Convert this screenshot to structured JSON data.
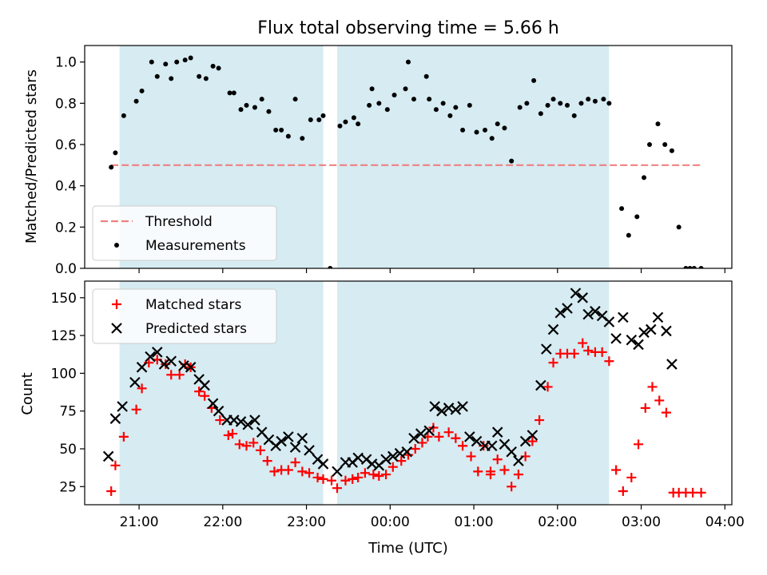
{
  "chart_data": [
    {
      "type": "scatter",
      "title": "Flux total observing time = 5.66 h",
      "ylabel": "Matched/Predicted stars",
      "xlim": [
        "20:21",
        "04:05"
      ],
      "ylim": [
        0,
        1.08
      ],
      "yticks": [
        "0.0",
        "0.2",
        "0.4",
        "0.6",
        "0.8",
        "1.0"
      ],
      "legend_placement": "lower-left",
      "observing_windows": [
        [
          "20:46",
          "23:12"
        ],
        [
          "23:22",
          "02:37"
        ]
      ],
      "series": [
        {
          "name": "Threshold",
          "style": "dashed-line",
          "color": "#f08080",
          "points": [
            [
              "20:40",
              0.5
            ],
            [
              "03:43",
              0.5
            ]
          ]
        },
        {
          "name": "Measurements",
          "style": "dot",
          "color": "#000000",
          "points": [
            [
              "20:40",
              0.49
            ],
            [
              "20:43",
              0.56
            ],
            [
              "20:49",
              0.74
            ],
            [
              "20:58",
              0.81
            ],
            [
              "21:02",
              0.86
            ],
            [
              "21:09",
              1.0
            ],
            [
              "21:13",
              0.93
            ],
            [
              "21:19",
              0.99
            ],
            [
              "21:23",
              0.92
            ],
            [
              "21:27",
              1.0
            ],
            [
              "21:33",
              1.01
            ],
            [
              "21:37",
              1.02
            ],
            [
              "21:43",
              0.93
            ],
            [
              "21:48",
              0.92
            ],
            [
              "21:53",
              0.98
            ],
            [
              "21:57",
              0.97
            ],
            [
              "22:05",
              0.85
            ],
            [
              "22:08",
              0.85
            ],
            [
              "22:13",
              0.77
            ],
            [
              "22:17",
              0.79
            ],
            [
              "22:23",
              0.78
            ],
            [
              "22:28",
              0.82
            ],
            [
              "22:33",
              0.76
            ],
            [
              "22:38",
              0.67
            ],
            [
              "22:42",
              0.67
            ],
            [
              "22:47",
              0.64
            ],
            [
              "22:52",
              0.82
            ],
            [
              "22:57",
              0.63
            ],
            [
              "23:03",
              0.72
            ],
            [
              "23:09",
              0.72
            ],
            [
              "23:12",
              0.74
            ],
            [
              "23:17",
              0.0
            ],
            [
              "23:24",
              0.69
            ],
            [
              "23:28",
              0.71
            ],
            [
              "23:34",
              0.73
            ],
            [
              "23:37",
              0.7
            ],
            [
              "23:45",
              0.79
            ],
            [
              "23:47",
              0.87
            ],
            [
              "23:52",
              0.8
            ],
            [
              "23:58",
              0.77
            ],
            [
              "00:03",
              0.84
            ],
            [
              "00:11",
              0.87
            ],
            [
              "00:13",
              1.0
            ],
            [
              "00:17",
              0.82
            ],
            [
              "00:26",
              0.93
            ],
            [
              "00:28",
              0.82
            ],
            [
              "00:33",
              0.77
            ],
            [
              "00:38",
              0.8
            ],
            [
              "00:43",
              0.74
            ],
            [
              "00:47",
              0.78
            ],
            [
              "00:52",
              0.67
            ],
            [
              "00:57",
              0.79
            ],
            [
              "01:02",
              0.66
            ],
            [
              "01:08",
              0.67
            ],
            [
              "01:13",
              0.63
            ],
            [
              "01:17",
              0.7
            ],
            [
              "01:22",
              0.68
            ],
            [
              "01:27",
              0.52
            ],
            [
              "01:33",
              0.78
            ],
            [
              "01:38",
              0.8
            ],
            [
              "01:43",
              0.91
            ],
            [
              "01:48",
              0.75
            ],
            [
              "01:53",
              0.79
            ],
            [
              "01:57",
              0.82
            ],
            [
              "02:02",
              0.8
            ],
            [
              "02:07",
              0.79
            ],
            [
              "02:12",
              0.74
            ],
            [
              "02:17",
              0.8
            ],
            [
              "02:22",
              0.82
            ],
            [
              "02:27",
              0.81
            ],
            [
              "02:33",
              0.82
            ],
            [
              "02:37",
              0.8
            ],
            [
              "02:46",
              0.29
            ],
            [
              "02:51",
              0.16
            ],
            [
              "02:57",
              0.25
            ],
            [
              "03:02",
              0.44
            ],
            [
              "03:06",
              0.6
            ],
            [
              "03:12",
              0.7
            ],
            [
              "03:17",
              0.6
            ],
            [
              "03:22",
              0.57
            ],
            [
              "03:27",
              0.2
            ],
            [
              "03:32",
              0.0
            ],
            [
              "03:35",
              0.0
            ],
            [
              "03:38",
              0.0
            ],
            [
              "03:43",
              0.0
            ]
          ]
        }
      ]
    },
    {
      "type": "scatter",
      "xlabel": "Time (UTC)",
      "ylabel": "Count",
      "xlim": [
        "20:21",
        "04:05"
      ],
      "ylim": [
        13,
        161
      ],
      "xticks": [
        "21:00",
        "22:00",
        "23:00",
        "00:00",
        "01:00",
        "02:00",
        "03:00",
        "04:00"
      ],
      "yticks": [
        "25",
        "50",
        "75",
        "100",
        "125",
        "150"
      ],
      "legend_placement": "upper-left",
      "observing_windows": [
        [
          "20:46",
          "23:12"
        ],
        [
          "23:22",
          "02:37"
        ]
      ],
      "series": [
        {
          "name": "Matched stars",
          "style": "plus",
          "color": "#ff0000",
          "points": [
            [
              "20:40",
              22
            ],
            [
              "20:43",
              39
            ],
            [
              "20:49",
              58
            ],
            [
              "20:58",
              76
            ],
            [
              "21:02",
              90
            ],
            [
              "21:07",
              107
            ],
            [
              "21:13",
              109
            ],
            [
              "21:19",
              106
            ],
            [
              "21:23",
              99
            ],
            [
              "21:29",
              99
            ],
            [
              "21:33",
              106
            ],
            [
              "21:37",
              104
            ],
            [
              "21:43",
              88
            ],
            [
              "21:47",
              85
            ],
            [
              "21:52",
              77
            ],
            [
              "21:58",
              69
            ],
            [
              "22:04",
              59
            ],
            [
              "22:07",
              60
            ],
            [
              "22:12",
              53
            ],
            [
              "22:17",
              52
            ],
            [
              "22:22",
              54
            ],
            [
              "22:27",
              49
            ],
            [
              "22:32",
              42
            ],
            [
              "22:37",
              35
            ],
            [
              "22:42",
              36
            ],
            [
              "22:47",
              36
            ],
            [
              "22:52",
              41
            ],
            [
              "22:57",
              35
            ],
            [
              "23:02",
              34
            ],
            [
              "23:08",
              31
            ],
            [
              "23:12",
              30
            ],
            [
              "23:18",
              29
            ],
            [
              "23:22",
              24
            ],
            [
              "23:28",
              29
            ],
            [
              "23:33",
              30
            ],
            [
              "23:37",
              31
            ],
            [
              "23:42",
              34
            ],
            [
              "23:48",
              33
            ],
            [
              "23:52",
              32
            ],
            [
              "23:57",
              33
            ],
            [
              "00:02",
              38
            ],
            [
              "00:08",
              42
            ],
            [
              "00:13",
              46
            ],
            [
              "00:18",
              50
            ],
            [
              "00:23",
              54
            ],
            [
              "00:27",
              58
            ],
            [
              "00:31",
              64
            ],
            [
              "00:35",
              58
            ],
            [
              "00:42",
              61
            ],
            [
              "00:47",
              57
            ],
            [
              "00:52",
              52
            ],
            [
              "00:58",
              45
            ],
            [
              "01:03",
              35
            ],
            [
              "01:07",
              52
            ],
            [
              "01:12",
              33
            ],
            [
              "01:12",
              35
            ],
            [
              "01:17",
              43
            ],
            [
              "01:22",
              36
            ],
            [
              "01:27",
              25
            ],
            [
              "01:32",
              33
            ],
            [
              "01:37",
              45
            ],
            [
              "01:42",
              55
            ],
            [
              "01:47",
              69
            ],
            [
              "01:53",
              91
            ],
            [
              "01:57",
              107
            ],
            [
              "02:02",
              113
            ],
            [
              "02:07",
              113
            ],
            [
              "02:12",
              113
            ],
            [
              "02:18",
              120
            ],
            [
              "02:22",
              115
            ],
            [
              "02:27",
              114
            ],
            [
              "02:32",
              114
            ],
            [
              "02:37",
              108
            ],
            [
              "02:42",
              36
            ],
            [
              "02:47",
              22
            ],
            [
              "02:53",
              31
            ],
            [
              "02:58",
              53
            ],
            [
              "03:03",
              77
            ],
            [
              "03:08",
              91
            ],
            [
              "03:13",
              82
            ],
            [
              "03:18",
              74
            ],
            [
              "03:23",
              21
            ],
            [
              "03:27",
              21
            ],
            [
              "03:32",
              21
            ],
            [
              "03:37",
              21
            ],
            [
              "03:43",
              21
            ]
          ]
        },
        {
          "name": "Predicted stars",
          "style": "x",
          "color": "#000000",
          "points": [
            [
              "20:38",
              45
            ],
            [
              "20:43",
              70
            ],
            [
              "20:48",
              78
            ],
            [
              "20:57",
              94
            ],
            [
              "21:02",
              104
            ],
            [
              "21:08",
              111
            ],
            [
              "21:13",
              114
            ],
            [
              "21:18",
              106
            ],
            [
              "21:23",
              108
            ],
            [
              "21:32",
              105
            ],
            [
              "21:37",
              104
            ],
            [
              "21:43",
              96
            ],
            [
              "21:47",
              92
            ],
            [
              "21:53",
              80
            ],
            [
              "21:57",
              75
            ],
            [
              "22:03",
              69
            ],
            [
              "22:08",
              69
            ],
            [
              "22:13",
              68
            ],
            [
              "22:18",
              66
            ],
            [
              "22:23",
              69
            ],
            [
              "22:28",
              61
            ],
            [
              "22:33",
              56
            ],
            [
              "22:38",
              52
            ],
            [
              "22:42",
              55
            ],
            [
              "22:47",
              58
            ],
            [
              "22:52",
              51
            ],
            [
              "22:57",
              57
            ],
            [
              "23:02",
              49
            ],
            [
              "23:08",
              43
            ],
            [
              "23:12",
              40
            ],
            [
              "23:22",
              35
            ],
            [
              "23:28",
              41
            ],
            [
              "23:33",
              41
            ],
            [
              "23:37",
              44
            ],
            [
              "23:43",
              43
            ],
            [
              "23:47",
              40
            ],
            [
              "23:52",
              39
            ],
            [
              "23:57",
              43
            ],
            [
              "00:02",
              45
            ],
            [
              "00:07",
              47
            ],
            [
              "00:12",
              48
            ],
            [
              "00:17",
              57
            ],
            [
              "00:22",
              60
            ],
            [
              "00:28",
              62
            ],
            [
              "00:32",
              78
            ],
            [
              "00:37",
              75
            ],
            [
              "00:42",
              77
            ],
            [
              "00:47",
              76
            ],
            [
              "00:52",
              78
            ],
            [
              "00:57",
              58
            ],
            [
              "01:02",
              55
            ],
            [
              "01:08",
              52
            ],
            [
              "01:13",
              52
            ],
            [
              "01:17",
              61
            ],
            [
              "01:22",
              53
            ],
            [
              "01:27",
              48
            ],
            [
              "01:32",
              42
            ],
            [
              "01:37",
              55
            ],
            [
              "01:42",
              59
            ],
            [
              "01:48",
              92
            ],
            [
              "01:52",
              116
            ],
            [
              "01:57",
              129
            ],
            [
              "02:02",
              140
            ],
            [
              "02:07",
              143
            ],
            [
              "02:13",
              153
            ],
            [
              "02:18",
              150
            ],
            [
              "02:22",
              139
            ],
            [
              "02:27",
              141
            ],
            [
              "02:32",
              138
            ],
            [
              "02:37",
              134
            ],
            [
              "02:42",
              123
            ],
            [
              "02:47",
              137
            ],
            [
              "02:53",
              122
            ],
            [
              "02:58",
              119
            ],
            [
              "03:02",
              127
            ],
            [
              "03:07",
              129
            ],
            [
              "03:12",
              137
            ],
            [
              "03:18",
              128
            ],
            [
              "03:22",
              106
            ]
          ]
        }
      ]
    }
  ]
}
